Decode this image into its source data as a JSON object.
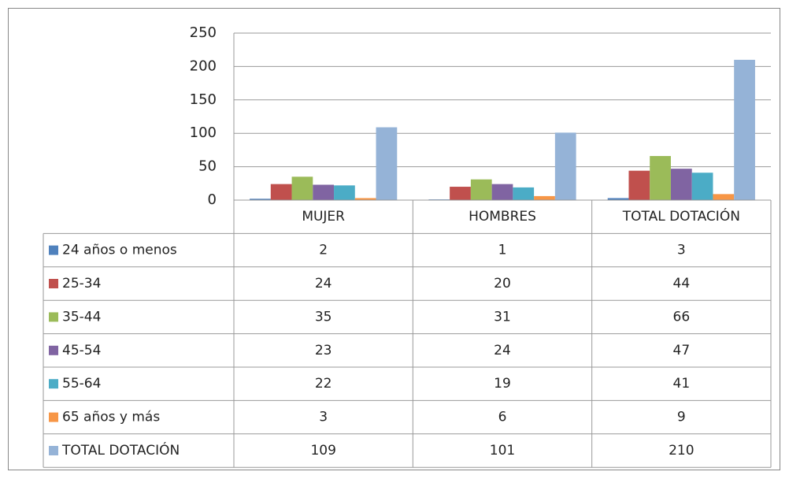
{
  "chart_data": {
    "type": "bar",
    "categories": [
      "MUJER",
      "HOMBRES",
      "TOTAL DOTACIÓN"
    ],
    "series": [
      {
        "name": "24 años o menos",
        "color": "#4f81bd",
        "values": [
          2,
          1,
          3
        ]
      },
      {
        "name": "25-34",
        "color": "#c0504d",
        "values": [
          24,
          20,
          44
        ]
      },
      {
        "name": "35-44",
        "color": "#9bbb59",
        "values": [
          35,
          31,
          66
        ]
      },
      {
        "name": "45-54",
        "color": "#8064a2",
        "values": [
          23,
          24,
          47
        ]
      },
      {
        "name": "55-64",
        "color": "#4bacc6",
        "values": [
          22,
          19,
          41
        ]
      },
      {
        "name": "65 años y más",
        "color": "#f79646",
        "values": [
          3,
          6,
          9
        ]
      },
      {
        "name": "TOTAL DOTACIÓN",
        "color": "#95b3d7",
        "values": [
          109,
          101,
          210
        ]
      }
    ],
    "ylim": [
      0,
      250
    ],
    "yticks": [
      0,
      50,
      100,
      150,
      200,
      250
    ],
    "grid": true
  }
}
